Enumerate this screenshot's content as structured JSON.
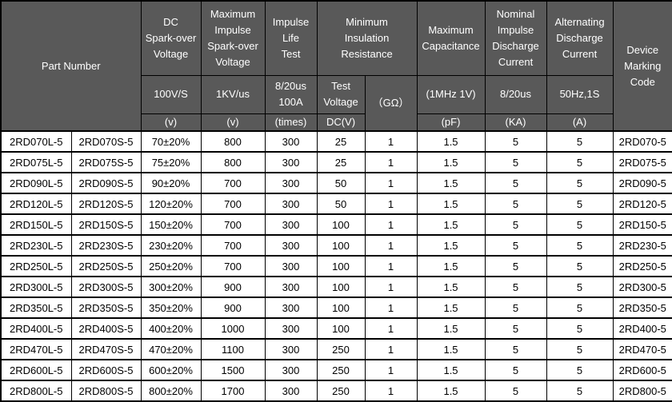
{
  "colors": {
    "header_bg": "#595959",
    "header_text": "#ffffff",
    "border": "#000000",
    "body_bg": "#ffffff",
    "body_text": "#000000"
  },
  "table": {
    "header": {
      "part_number": "Part Number",
      "dc_sparkover": {
        "title": "DC\nSpark-over\nVoltage",
        "condition": "100V/S",
        "unit": "(v)"
      },
      "max_impulse_sparkover": {
        "title": "Maximum\nImpulse\nSpark-over\nVoltage",
        "condition": "1KV/us",
        "unit": "(v)"
      },
      "impulse_life": {
        "title": "Impulse\nLife\nTest",
        "condition": "8/20us\n100A",
        "unit": "(times)"
      },
      "insulation": {
        "title": "Minimum\nInsulation\nResistance",
        "test_voltage_label": "Test\nVoltage",
        "test_voltage_unit": "DC(V)",
        "gohm_label": "（GΩ）"
      },
      "capacitance": {
        "title": "Maximum\nCapacitance",
        "condition": "(1MHz 1V)",
        "unit": "(pF)"
      },
      "nominal_discharge": {
        "title": "Nominal\nImpulse\nDischarge\nCurrent",
        "condition": "8/20us",
        "unit": "(KA)"
      },
      "alternating_discharge": {
        "title": "Alternating\nDischarge\nCurrent",
        "condition": "50Hz,1S",
        "unit": "(A)"
      },
      "device_marking": "Device\nMarking\nCode"
    },
    "columns_order": [
      "part_l",
      "part_s",
      "dc",
      "impulse",
      "life",
      "test_v",
      "gohm",
      "cap",
      "ka",
      "a",
      "code"
    ],
    "rows": [
      {
        "part_l": "2RD070L-5",
        "part_s": "2RD070S-5",
        "dc": "70±20%",
        "impulse": "800",
        "life": "300",
        "test_v": "25",
        "gohm": "1",
        "cap": "1.5",
        "ka": "5",
        "a": "5",
        "code": "2RD070-5"
      },
      {
        "part_l": "2RD075L-5",
        "part_s": "2RD075S-5",
        "dc": "75±20%",
        "impulse": "800",
        "life": "300",
        "test_v": "25",
        "gohm": "1",
        "cap": "1.5",
        "ka": "5",
        "a": "5",
        "code": "2RD075-5"
      },
      {
        "part_l": "2RD090L-5",
        "part_s": "2RD090S-5",
        "dc": "90±20%",
        "impulse": "700",
        "life": "300",
        "test_v": "50",
        "gohm": "1",
        "cap": "1.5",
        "ka": "5",
        "a": "5",
        "code": "2RD090-5"
      },
      {
        "part_l": "2RD120L-5",
        "part_s": "2RD120S-5",
        "dc": "120±20%",
        "impulse": "700",
        "life": "300",
        "test_v": "50",
        "gohm": "1",
        "cap": "1.5",
        "ka": "5",
        "a": "5",
        "code": "2RD120-5"
      },
      {
        "part_l": "2RD150L-5",
        "part_s": "2RD150S-5",
        "dc": "150±20%",
        "impulse": "700",
        "life": "300",
        "test_v": "100",
        "gohm": "1",
        "cap": "1.5",
        "ka": "5",
        "a": "5",
        "code": "2RD150-5"
      },
      {
        "part_l": "2RD230L-5",
        "part_s": "2RD230S-5",
        "dc": "230±20%",
        "impulse": "700",
        "life": "300",
        "test_v": "100",
        "gohm": "1",
        "cap": "1.5",
        "ka": "5",
        "a": "5",
        "code": "2RD230-5"
      },
      {
        "part_l": "2RD250L-5",
        "part_s": "2RD250S-5",
        "dc": "250±20%",
        "impulse": "700",
        "life": "300",
        "test_v": "100",
        "gohm": "1",
        "cap": "1.5",
        "ka": "5",
        "a": "5",
        "code": "2RD250-5"
      },
      {
        "part_l": "2RD300L-5",
        "part_s": "2RD300S-5",
        "dc": "300±20%",
        "impulse": "900",
        "life": "300",
        "test_v": "100",
        "gohm": "1",
        "cap": "1.5",
        "ka": "5",
        "a": "5",
        "code": "2RD300-5"
      },
      {
        "part_l": "2RD350L-5",
        "part_s": "2RD350S-5",
        "dc": "350±20%",
        "impulse": "900",
        "life": "300",
        "test_v": "100",
        "gohm": "1",
        "cap": "1.5",
        "ka": "5",
        "a": "5",
        "code": "2RD350-5"
      },
      {
        "part_l": "2RD400L-5",
        "part_s": "2RD400S-5",
        "dc": "400±20%",
        "impulse": "1000",
        "life": "300",
        "test_v": "100",
        "gohm": "1",
        "cap": "1.5",
        "ka": "5",
        "a": "5",
        "code": "2RD400-5"
      },
      {
        "part_l": "2RD470L-5",
        "part_s": "2RD470S-5",
        "dc": "470±20%",
        "impulse": "1100",
        "life": "300",
        "test_v": "250",
        "gohm": "1",
        "cap": "1.5",
        "ka": "5",
        "a": "5",
        "code": "2RD470-5"
      },
      {
        "part_l": "2RD600L-5",
        "part_s": "2RD600S-5",
        "dc": "600±20%",
        "impulse": "1500",
        "life": "300",
        "test_v": "250",
        "gohm": "1",
        "cap": "1.5",
        "ka": "5",
        "a": "5",
        "code": "2RD600-5"
      },
      {
        "part_l": "2RD800L-5",
        "part_s": "2RD800S-5",
        "dc": "800±20%",
        "impulse": "1700",
        "life": "300",
        "test_v": "250",
        "gohm": "1",
        "cap": "1.5",
        "ka": "5",
        "a": "5",
        "code": "2RD800-5"
      }
    ]
  }
}
